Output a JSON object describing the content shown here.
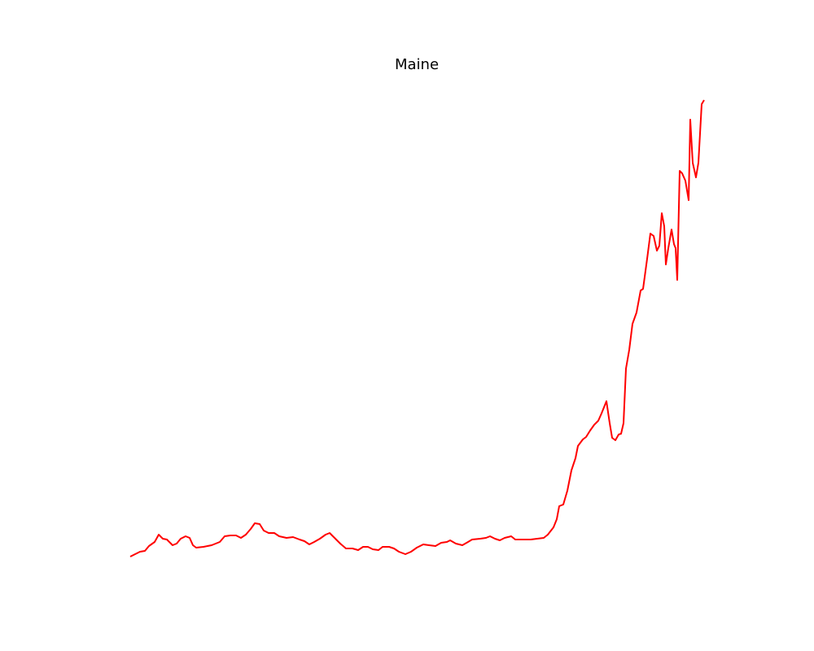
{
  "chart_data": {
    "type": "line",
    "title": "Maine",
    "color": "#ff0000",
    "xlim": [
      0,
      775
    ],
    "ylim": [
      0,
      608
    ],
    "x": [
      35,
      41,
      47,
      53,
      58,
      65,
      70,
      75,
      80,
      87,
      92,
      97,
      103,
      108,
      112,
      116,
      125,
      135,
      145,
      151,
      158,
      165,
      171,
      177,
      183,
      188,
      194,
      199,
      205,
      212,
      218,
      227,
      235,
      243,
      249,
      255,
      261,
      268,
      275,
      280,
      285,
      293,
      300,
      308,
      315,
      321,
      327,
      333,
      340,
      345,
      353,
      359,
      365,
      373,
      380,
      387,
      395,
      402,
      410,
      417,
      424,
      428,
      435,
      443,
      450,
      455,
      465,
      472,
      477,
      483,
      489,
      495,
      503,
      508,
      517,
      527,
      535,
      543,
      548,
      555,
      559,
      562,
      567,
      572,
      577,
      582,
      585,
      591,
      595,
      600,
      605,
      610,
      614,
      620,
      624,
      627,
      631,
      635,
      638,
      641,
      644,
      648,
      652,
      657,
      662,
      665,
      670,
      674,
      678,
      682,
      685,
      688,
      691,
      693,
      696,
      700,
      703,
      705,
      707,
      710,
      713,
      717,
      721,
      723,
      726,
      730,
      733,
      737,
      740
    ],
    "values": [
      20,
      23,
      26,
      27,
      33,
      38,
      47,
      42,
      41,
      34,
      36,
      42,
      45,
      43,
      34,
      31,
      32,
      34,
      38,
      45,
      46,
      46,
      43,
      47,
      54,
      61,
      60,
      52,
      49,
      49,
      45,
      43,
      44,
      41,
      39,
      35,
      38,
      42,
      47,
      49,
      44,
      36,
      30,
      30,
      28,
      32,
      32,
      29,
      28,
      32,
      32,
      30,
      26,
      23,
      26,
      31,
      35,
      34,
      33,
      37,
      38,
      40,
      36,
      34,
      38,
      41,
      42,
      43,
      45,
      42,
      40,
      43,
      45,
      41,
      41,
      41,
      42,
      43,
      47,
      56,
      66,
      82,
      84,
      101,
      126,
      141,
      156,
      164,
      167,
      175,
      182,
      187,
      196,
      211,
      184,
      166,
      163,
      170,
      171,
      184,
      251,
      274,
      306,
      320,
      347,
      349,
      386,
      417,
      414,
      396,
      402,
      442,
      426,
      379,
      399,
      422,
      404,
      399,
      360,
      494,
      491,
      482,
      458,
      557,
      504,
      486,
      504,
      576,
      581
    ]
  }
}
